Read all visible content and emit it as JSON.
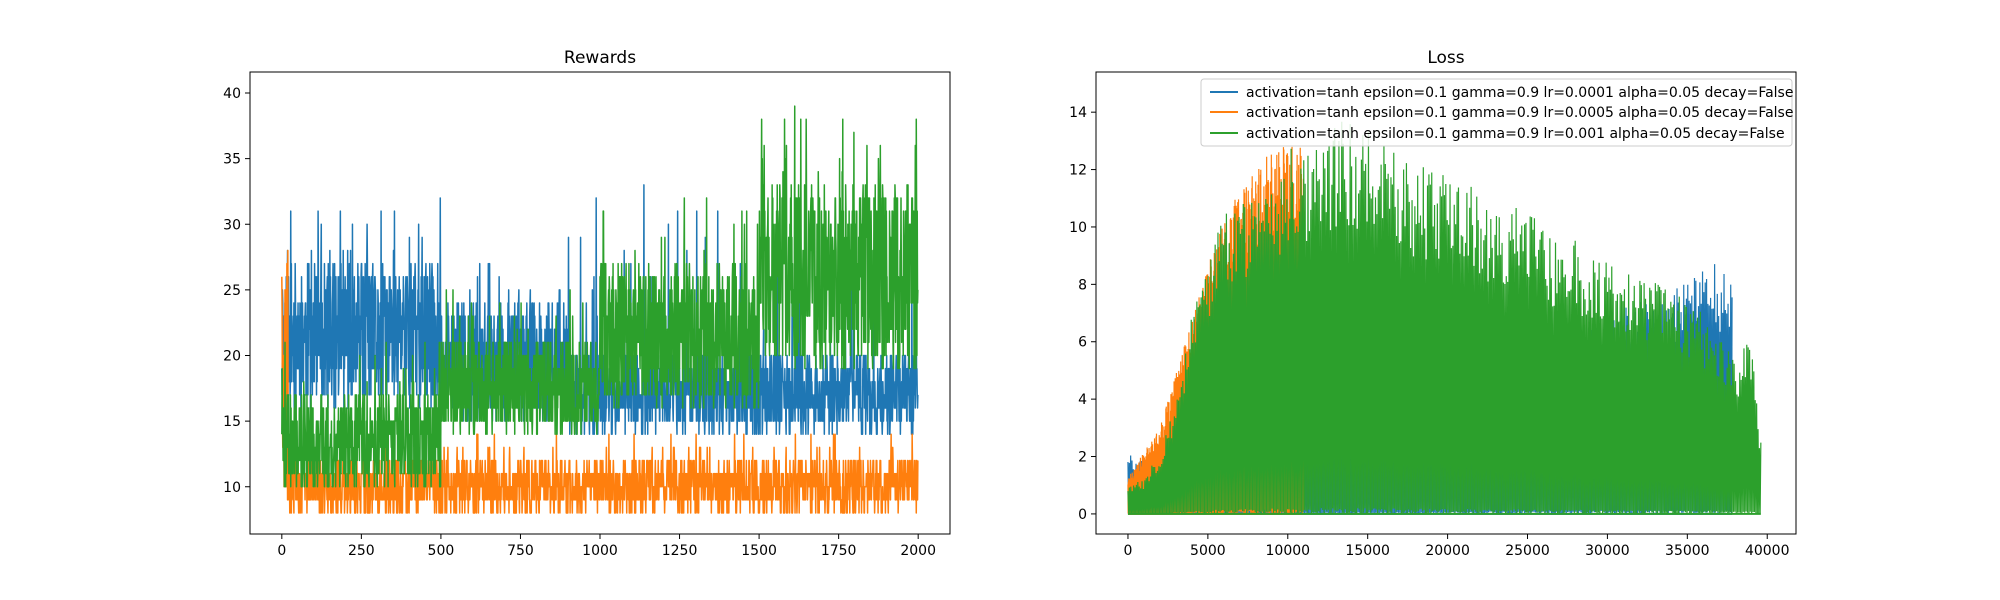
{
  "figure": {
    "background": "#ffffff"
  },
  "chart_data": [
    {
      "type": "line",
      "title": "Rewards",
      "xlabel": "",
      "ylabel": "",
      "xlim": [
        -100,
        2100
      ],
      "ylim": [
        6.4,
        41.6
      ],
      "xticks": [
        0,
        250,
        500,
        750,
        1000,
        1250,
        1500,
        1750,
        2000
      ],
      "yticks": [
        10,
        15,
        20,
        25,
        30,
        35,
        40
      ],
      "grid": false,
      "x_count": 2000,
      "series": [
        {
          "color": "#1f77b4",
          "segments": [
            {
              "x": [
                0,
                500
              ],
              "low": 16,
              "high": 27,
              "spike": 33
            },
            {
              "x": [
                500,
                900
              ],
              "low": 15,
              "high": 24,
              "spike": 27
            },
            {
              "x": [
                900,
                2000
              ],
              "low": 14,
              "high": 20,
              "spike": 33
            }
          ]
        },
        {
          "color": "#ff7f0e",
          "segments": [
            {
              "x": [
                0,
                20
              ],
              "low": 9,
              "high": 28,
              "spike": 28
            },
            {
              "x": [
                20,
                2000
              ],
              "low": 8,
              "high": 12,
              "spike": 14
            }
          ]
        },
        {
          "color": "#2ca02c",
          "segments": [
            {
              "x": [
                0,
                500
              ],
              "low": 10,
              "high": 17,
              "spike": 21
            },
            {
              "x": [
                500,
                1000
              ],
              "low": 14,
              "high": 21,
              "spike": 25
            },
            {
              "x": [
                1000,
                1500
              ],
              "low": 16,
              "high": 27,
              "spike": 33
            },
            {
              "x": [
                1500,
                2000
              ],
              "low": 19,
              "high": 33,
              "spike": 40
            }
          ]
        }
      ]
    },
    {
      "type": "line",
      "title": "Loss",
      "xlabel": "",
      "ylabel": "",
      "xlim": [
        -2000,
        41800
      ],
      "ylim": [
        -0.7,
        15.4
      ],
      "xticks": [
        0,
        5000,
        10000,
        15000,
        20000,
        25000,
        30000,
        35000,
        40000
      ],
      "yticks": [
        0,
        2,
        4,
        6,
        8,
        10,
        12,
        14
      ],
      "grid": false,
      "legend_position": "top-right",
      "series": [
        {
          "name": "activation=tanh epsilon=0.1 gamma=0.9 lr=0.0001 alpha=0.05 decay=False",
          "color": "#1f77b4",
          "x_end": 37800,
          "envelope": [
            [
              0,
              2.3
            ],
            [
              1500,
              1.5
            ],
            [
              30000,
              7.0
            ],
            [
              32000,
              7.5
            ],
            [
              34000,
              7.8
            ],
            [
              35500,
              8.4
            ],
            [
              37000,
              8.8
            ],
            [
              37800,
              8.2
            ]
          ]
        },
        {
          "name": "activation=tanh epsilon=0.1 gamma=0.9 lr=0.0005 alpha=0.05 decay=False",
          "color": "#ff7f0e",
          "x_end": 11000,
          "envelope": [
            [
              0,
              1.3
            ],
            [
              2000,
              3.0
            ],
            [
              6000,
              10.5
            ],
            [
              9000,
              12.8
            ],
            [
              11000,
              12.8
            ]
          ]
        },
        {
          "name": "activation=tanh epsilon=0.1 gamma=0.9 lr=0.001 alpha=0.05 decay=False",
          "color": "#2ca02c",
          "x_end": 39600,
          "envelope": [
            [
              0,
              1.0
            ],
            [
              1000,
              1.2
            ],
            [
              2000,
              2.2
            ],
            [
              3000,
              4.0
            ],
            [
              4000,
              7.0
            ],
            [
              5000,
              9.0
            ],
            [
              6000,
              10.5
            ],
            [
              8000,
              11.8
            ],
            [
              10000,
              12.7
            ],
            [
              13000,
              13.8
            ],
            [
              15000,
              13.4
            ],
            [
              18000,
              12.4
            ],
            [
              21000,
              11.6
            ],
            [
              24000,
              10.8
            ],
            [
              27000,
              9.8
            ],
            [
              30000,
              9.0
            ],
            [
              33000,
              8.2
            ],
            [
              36000,
              7.0
            ],
            [
              38000,
              5.5
            ],
            [
              39000,
              6.2
            ],
            [
              39600,
              2.5
            ]
          ]
        }
      ]
    }
  ]
}
